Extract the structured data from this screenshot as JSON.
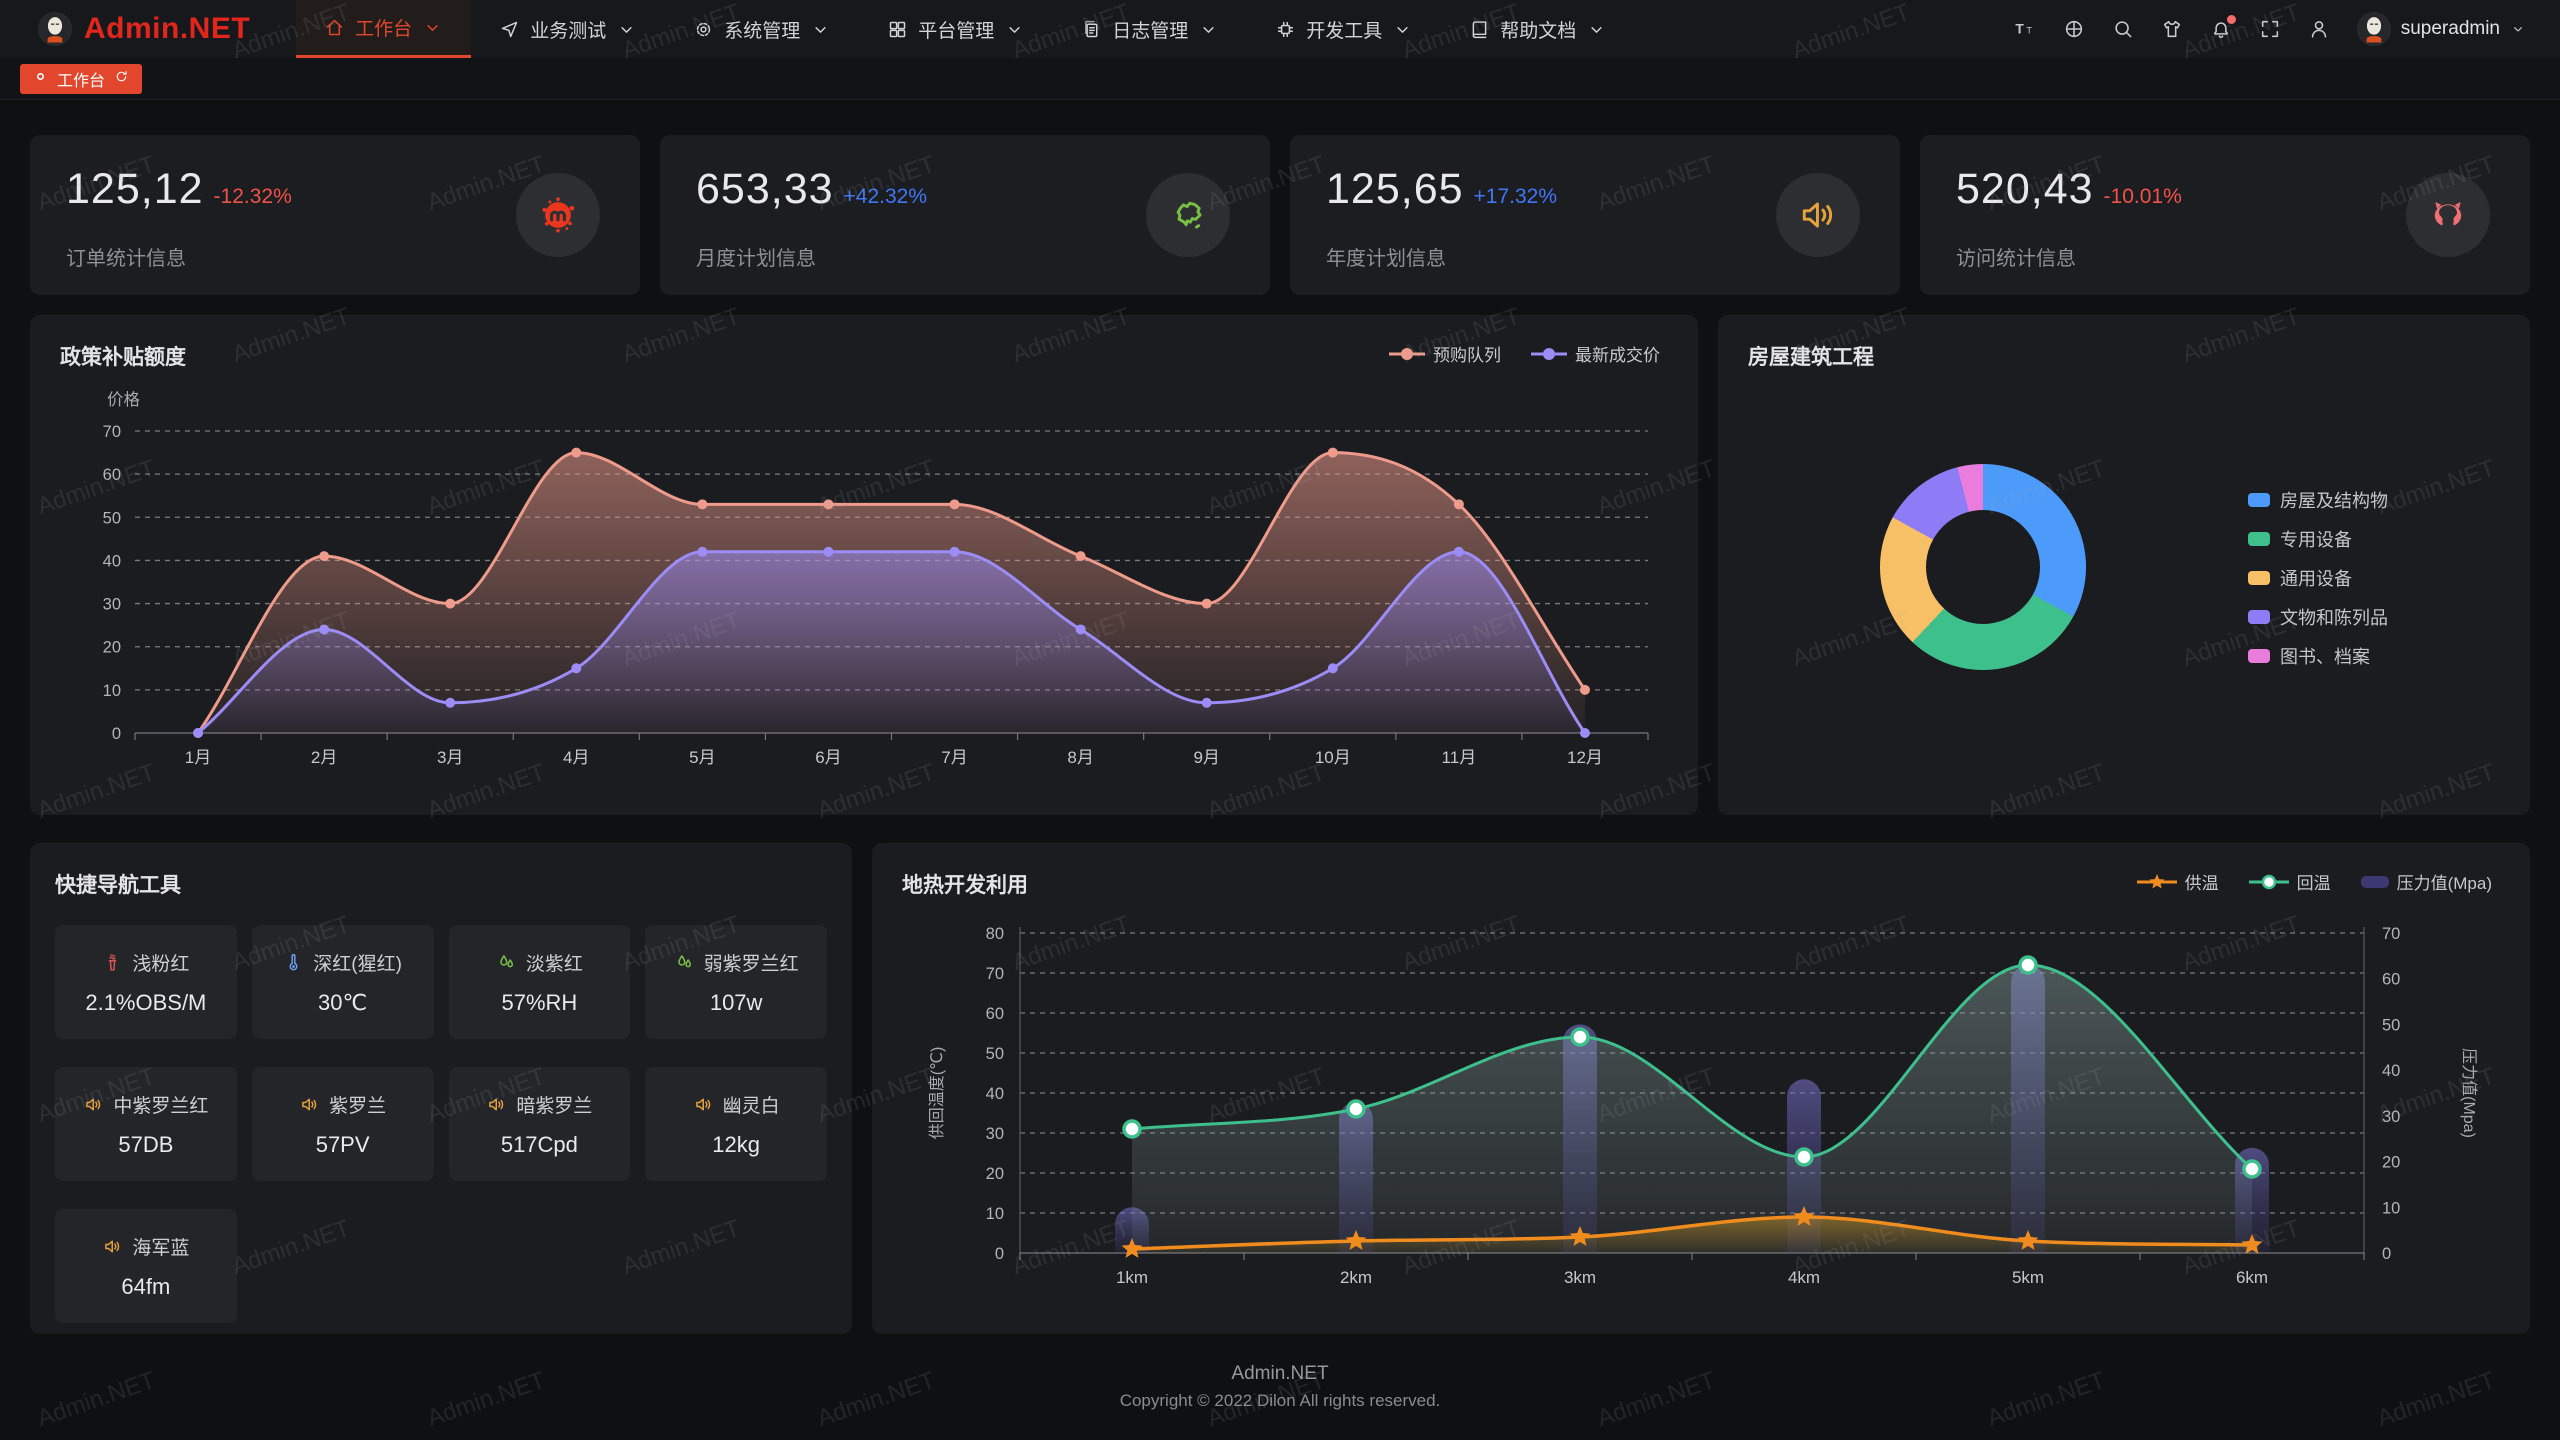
{
  "app": {
    "brand": "Admin.NET",
    "watermark": "Admin.NET",
    "accent": "#e2472e"
  },
  "header": {
    "menu": [
      {
        "label": "工作台",
        "icon": "home-icon",
        "active": true
      },
      {
        "label": "业务测试",
        "icon": "navigation-icon",
        "active": false
      },
      {
        "label": "系统管理",
        "icon": "gear-icon",
        "active": false
      },
      {
        "label": "平台管理",
        "icon": "grid-icon",
        "active": false
      },
      {
        "label": "日志管理",
        "icon": "document-icon",
        "active": false
      },
      {
        "label": "开发工具",
        "icon": "chip-icon",
        "active": false
      },
      {
        "label": "帮助文档",
        "icon": "book-icon",
        "active": false
      }
    ],
    "tools": [
      {
        "name": "font-size-icon",
        "badge": false
      },
      {
        "name": "globe-icon",
        "badge": false
      },
      {
        "name": "search-icon",
        "badge": false
      },
      {
        "name": "theme-shirt-icon",
        "badge": false
      },
      {
        "name": "bell-icon",
        "badge": true
      },
      {
        "name": "fullscreen-icon",
        "badge": false
      },
      {
        "name": "person-icon",
        "badge": false
      }
    ],
    "user": "superadmin"
  },
  "tabbar": {
    "active_tab": "工作台"
  },
  "stats": [
    {
      "value": "125,12",
      "delta": "-12.32%",
      "delta_color": "#f15248",
      "label": "订单统计信息",
      "icon": "cloud-splat-icon",
      "icon_color": "#e8361f"
    },
    {
      "value": "653,33",
      "delta": "+42.32%",
      "delta_color": "#4076f6",
      "label": "月度计划信息",
      "icon": "china-map-icon",
      "icon_color": "#76c043"
    },
    {
      "value": "125,65",
      "delta": "+17.32%",
      "delta_color": "#4076f6",
      "label": "年度计划信息",
      "icon": "speaker-icon",
      "icon_color": "#e6a23c"
    },
    {
      "value": "520,43",
      "delta": "-10.01%",
      "delta_color": "#f15248",
      "label": "访问统计信息",
      "icon": "octocat-icon",
      "icon_color": "#ef7070"
    }
  ],
  "quick_nav": {
    "title": "快捷导航工具",
    "items": [
      {
        "icon": "chimney-icon",
        "color": "#e05353",
        "name": "浅粉红",
        "value": "2.1%OBS/M"
      },
      {
        "icon": "thermometer-icon",
        "color": "#6f9ff5",
        "name": "深红(猩红)",
        "value": "30℃"
      },
      {
        "icon": "drops-icon",
        "color": "#7cc34a",
        "name": "淡紫红",
        "value": "57%RH"
      },
      {
        "icon": "drops-icon",
        "color": "#7cc34a",
        "name": "弱紫罗兰红",
        "value": "107w"
      },
      {
        "icon": "speaker-icon",
        "color": "#e6a23c",
        "name": "中紫罗兰红",
        "value": "57DB"
      },
      {
        "icon": "speaker-icon",
        "color": "#e6a23c",
        "name": "紫罗兰",
        "value": "57PV"
      },
      {
        "icon": "speaker-icon",
        "color": "#e6a23c",
        "name": "暗紫罗兰",
        "value": "517Cpd"
      },
      {
        "icon": "speaker-icon",
        "color": "#e6a23c",
        "name": "幽灵白",
        "value": "12kg"
      },
      {
        "icon": "speaker-icon",
        "color": "#e6a23c",
        "name": "海军蓝",
        "value": "64fm"
      }
    ]
  },
  "chart_data": [
    {
      "type": "area",
      "title": "政策补贴额度",
      "ylabel": "价格",
      "ylim": [
        0,
        70
      ],
      "y_ticks": [
        0,
        10,
        20,
        30,
        40,
        50,
        60,
        70
      ],
      "grid": true,
      "legend_position": "top-right",
      "categories": [
        "1月",
        "2月",
        "3月",
        "4月",
        "5月",
        "6月",
        "7月",
        "8月",
        "9月",
        "10月",
        "11月",
        "12月"
      ],
      "series": [
        {
          "name": "预购队列",
          "color": "#EE9B8C",
          "values": [
            0,
            41,
            30,
            65,
            53,
            53,
            53,
            41,
            30,
            65,
            53,
            10
          ]
        },
        {
          "name": "最新成交价",
          "color": "#9B8CF6",
          "values": [
            0,
            24,
            7,
            15,
            42,
            42,
            42,
            24,
            7,
            15,
            42,
            0
          ]
        }
      ]
    },
    {
      "type": "pie",
      "title": "房屋建筑工程",
      "legend_position": "right",
      "items": [
        {
          "label": "房屋及结构物",
          "value": 33,
          "color": "#4C9BFA"
        },
        {
          "label": "专用设备",
          "value": 29,
          "color": "#3EC08C"
        },
        {
          "label": "通用设备",
          "value": 21,
          "color": "#F8C066"
        },
        {
          "label": "文物和陈列品",
          "value": 13,
          "color": "#8D7CF6"
        },
        {
          "label": "图书、档案",
          "value": 4,
          "color": "#EA7CDE"
        }
      ]
    },
    {
      "type": "combo",
      "title": "地热开发利用",
      "categories": [
        "1km",
        "2km",
        "3km",
        "4km",
        "5km",
        "6km"
      ],
      "left_axis": {
        "name": "供回温度(℃)",
        "min": 0,
        "max": 80,
        "ticks": [
          0,
          10,
          20,
          30,
          40,
          50,
          60,
          70,
          80
        ]
      },
      "right_axis": {
        "name": "压力值(Mpa)",
        "min": 0,
        "max": 70,
        "ticks": [
          0,
          10,
          20,
          30,
          40,
          50,
          60,
          70
        ]
      },
      "grid": true,
      "legend_position": "top-right",
      "series": [
        {
          "name": "供温",
          "kind": "line",
          "marker": "star",
          "axis": "left",
          "color": "#F08C1E",
          "values": [
            1,
            3,
            4,
            9,
            3,
            2
          ]
        },
        {
          "name": "回温",
          "kind": "line",
          "marker": "circle",
          "axis": "left",
          "color": "#3EC08C",
          "values": [
            31,
            36,
            54,
            24,
            72,
            21
          ]
        },
        {
          "name": "压力值(Mpa)",
          "kind": "bar",
          "axis": "right",
          "color": "#55519E",
          "values": [
            10,
            33,
            50,
            38,
            63,
            23
          ]
        }
      ]
    }
  ],
  "footer": {
    "line1": "Admin.NET",
    "line2": "Copyright © 2022 Dilon All rights reserved."
  }
}
